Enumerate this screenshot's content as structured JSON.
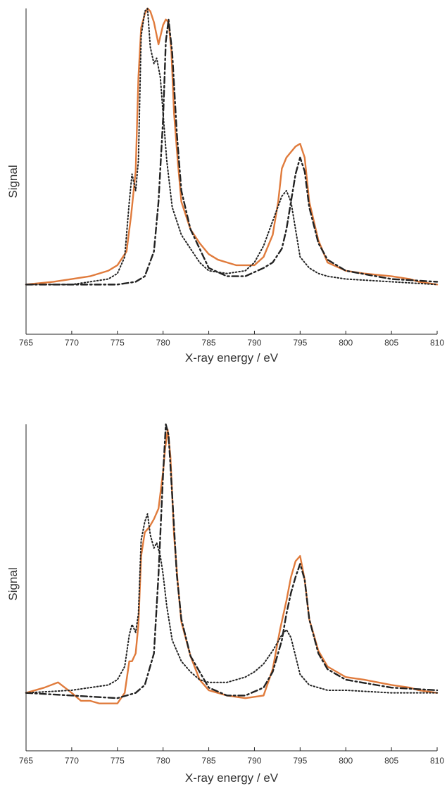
{
  "chart_data": [
    {
      "type": "line",
      "xlabel": "X-ray energy / eV",
      "ylabel": "Signal",
      "xlim": [
        765,
        810
      ],
      "ylim": [
        -0.18,
        1.0
      ],
      "xticks": [
        765,
        770,
        775,
        780,
        785,
        790,
        795,
        800,
        805,
        810
      ],
      "grid": false,
      "series": [
        {
          "style": "solid",
          "color": "#e07b3c",
          "x": [
            765,
            768,
            770,
            772,
            774,
            775,
            776,
            776.5,
            777,
            777.3,
            777.6,
            778,
            778.3,
            778.6,
            779,
            779.5,
            780,
            780.3,
            780.6,
            780.9,
            781.2,
            781.6,
            782,
            783,
            784,
            785,
            786,
            787,
            788,
            789,
            790,
            791,
            792,
            792.6,
            793,
            793.5,
            794,
            794.5,
            795,
            795.5,
            796,
            797,
            798,
            800,
            802,
            805,
            807,
            808,
            810
          ],
          "y": [
            0,
            0.01,
            0.02,
            0.03,
            0.05,
            0.07,
            0.12,
            0.25,
            0.41,
            0.75,
            0.93,
            0.98,
            1.0,
            0.99,
            0.95,
            0.87,
            0.94,
            0.96,
            0.95,
            0.85,
            0.62,
            0.45,
            0.3,
            0.2,
            0.15,
            0.11,
            0.09,
            0.08,
            0.07,
            0.07,
            0.07,
            0.1,
            0.18,
            0.3,
            0.42,
            0.46,
            0.48,
            0.5,
            0.51,
            0.46,
            0.3,
            0.16,
            0.08,
            0.05,
            0.04,
            0.03,
            0.02,
            0.01,
            0
          ]
        },
        {
          "style": "dashdot",
          "color": "#222222",
          "x": [
            765,
            770,
            775,
            777,
            778,
            779,
            779.5,
            780,
            780.3,
            780.6,
            781,
            781.5,
            782,
            783,
            784,
            785,
            787,
            789,
            791,
            792,
            793,
            793.5,
            794,
            794.5,
            795,
            795.5,
            796,
            797,
            798,
            800,
            805,
            810
          ],
          "y": [
            0,
            0,
            0,
            0.01,
            0.03,
            0.12,
            0.3,
            0.6,
            0.88,
            0.96,
            0.84,
            0.55,
            0.34,
            0.2,
            0.13,
            0.06,
            0.03,
            0.03,
            0.06,
            0.08,
            0.13,
            0.2,
            0.3,
            0.4,
            0.46,
            0.41,
            0.28,
            0.15,
            0.09,
            0.05,
            0.02,
            0.01
          ]
        },
        {
          "style": "dotted",
          "color": "#222222",
          "x": [
            765,
            770,
            774,
            775,
            775.8,
            776.3,
            776.6,
            777,
            777.3,
            777.6,
            778,
            778.3,
            778.6,
            779,
            779.3,
            779.7,
            780,
            780.4,
            781,
            782,
            783,
            784,
            785,
            787,
            789,
            790,
            791,
            792,
            793,
            793.5,
            794,
            794.5,
            795,
            796,
            797,
            798,
            800,
            805,
            810
          ],
          "y": [
            0,
            0.0,
            0.02,
            0.04,
            0.1,
            0.3,
            0.4,
            0.34,
            0.45,
            0.9,
            0.99,
            1.0,
            0.86,
            0.8,
            0.82,
            0.75,
            0.62,
            0.45,
            0.28,
            0.18,
            0.13,
            0.08,
            0.05,
            0.04,
            0.05,
            0.08,
            0.14,
            0.23,
            0.32,
            0.34,
            0.3,
            0.2,
            0.1,
            0.06,
            0.04,
            0.03,
            0.02,
            0.01,
            0
          ]
        }
      ]
    },
    {
      "type": "line",
      "xlabel": "X-ray energy / eV",
      "ylabel": "Signal",
      "xlim": [
        765,
        810
      ],
      "ylim": [
        -0.22,
        1.02
      ],
      "xticks": [
        765,
        770,
        775,
        780,
        785,
        790,
        795,
        800,
        805,
        810
      ],
      "grid": false,
      "series": [
        {
          "style": "solid",
          "color": "#e07b3c",
          "x": [
            765,
            767,
            768.5,
            770,
            771,
            772,
            773,
            774,
            775,
            775.8,
            776.3,
            776.6,
            777,
            777.3,
            777.6,
            778,
            778.5,
            779,
            779.5,
            780,
            780.2,
            780.5,
            780.8,
            781.2,
            781.6,
            782,
            783,
            784,
            785,
            787,
            789,
            791,
            792,
            792.8,
            793.5,
            794,
            794.5,
            795,
            795.5,
            796,
            797,
            798,
            800,
            802,
            805,
            807,
            808,
            810
          ],
          "y": [
            0,
            0.02,
            0.04,
            0.0,
            -0.03,
            -0.03,
            -0.04,
            -0.04,
            -0.04,
            0.0,
            0.12,
            0.12,
            0.15,
            0.26,
            0.52,
            0.61,
            0.63,
            0.66,
            0.7,
            0.84,
            0.92,
            1.0,
            0.9,
            0.6,
            0.42,
            0.27,
            0.14,
            0.05,
            0.01,
            -0.01,
            -0.02,
            -0.01,
            0.09,
            0.24,
            0.35,
            0.44,
            0.5,
            0.52,
            0.43,
            0.28,
            0.16,
            0.1,
            0.06,
            0.05,
            0.03,
            0.02,
            0.01,
            0
          ]
        },
        {
          "style": "dashdot",
          "color": "#222222",
          "x": [
            765,
            770,
            775,
            777,
            778,
            779,
            779.5,
            780,
            780.3,
            780.6,
            781,
            781.5,
            782,
            783,
            784,
            785,
            787,
            789,
            791,
            792,
            793,
            793.5,
            794,
            794.5,
            795,
            795.5,
            796,
            797,
            798,
            800,
            805,
            810
          ],
          "y": [
            0,
            -0.01,
            -0.02,
            0.0,
            0.03,
            0.15,
            0.45,
            0.83,
            1.02,
            0.98,
            0.75,
            0.45,
            0.28,
            0.14,
            0.08,
            0.02,
            -0.01,
            -0.01,
            0.02,
            0.08,
            0.2,
            0.3,
            0.38,
            0.44,
            0.49,
            0.43,
            0.28,
            0.15,
            0.09,
            0.05,
            0.02,
            0.01
          ]
        },
        {
          "style": "dotted",
          "color": "#222222",
          "x": [
            765,
            770,
            774,
            775,
            775.8,
            776.3,
            776.6,
            777,
            777.3,
            777.6,
            778,
            778.3,
            778.6,
            779,
            779.3,
            779.7,
            780,
            780.4,
            781,
            782,
            783,
            784,
            785,
            787,
            789,
            790,
            791,
            792,
            793,
            793.5,
            794,
            794.5,
            795,
            796,
            797,
            798,
            800,
            805,
            810
          ],
          "y": [
            0,
            0.01,
            0.03,
            0.05,
            0.1,
            0.22,
            0.26,
            0.23,
            0.3,
            0.58,
            0.65,
            0.68,
            0.6,
            0.55,
            0.57,
            0.52,
            0.45,
            0.33,
            0.2,
            0.12,
            0.08,
            0.05,
            0.04,
            0.04,
            0.06,
            0.08,
            0.11,
            0.16,
            0.22,
            0.24,
            0.21,
            0.14,
            0.07,
            0.03,
            0.02,
            0.01,
            0.01,
            0.0,
            0
          ]
        }
      ]
    }
  ]
}
